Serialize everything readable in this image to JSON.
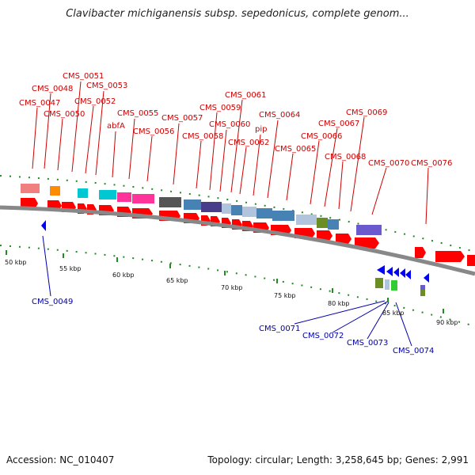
{
  "title": "Clavibacter michiganensis subsp. sepedonicus, complete genom...",
  "footer": {
    "accession": "Accession: NC_010407",
    "topology": "Topology: circular; Length: 3,258,645 bp; Genes: 2,991"
  },
  "colors": {
    "forward_cds": "#ff0000",
    "reverse_cds": "#0000ff",
    "backbone": "#888888",
    "dots": "#228b22",
    "forward_label": "#cc0000",
    "reverse_label": "#0000aa"
  },
  "scale_ticks": [
    "50 kbp",
    "55 kbp",
    "60 kbp",
    "65 kbp",
    "70 kbp",
    "75 kbp",
    "80 kbp",
    "85 kbp",
    "90 kbp"
  ],
  "forward_labels": [
    "CMS_0047",
    "CMS_0048",
    "CMS_0050",
    "CMS_0051",
    "CMS_0052",
    "CMS_0053",
    "abfA",
    "CMS_0055",
    "CMS_0056",
    "CMS_0057",
    "CMS_0058",
    "CMS_0059",
    "CMS_0060",
    "CMS_0061",
    "CMS_0062",
    "pip",
    "CMS_0064",
    "CMS_0065",
    "CMS_0066",
    "CMS_0067",
    "CMS_0068",
    "CMS_0069",
    "CMS_0070",
    "CMS_0076"
  ],
  "reverse_labels": [
    "CMS_0049",
    "CMS_0071",
    "CMS_0072",
    "CMS_0073",
    "CMS_0074"
  ]
}
